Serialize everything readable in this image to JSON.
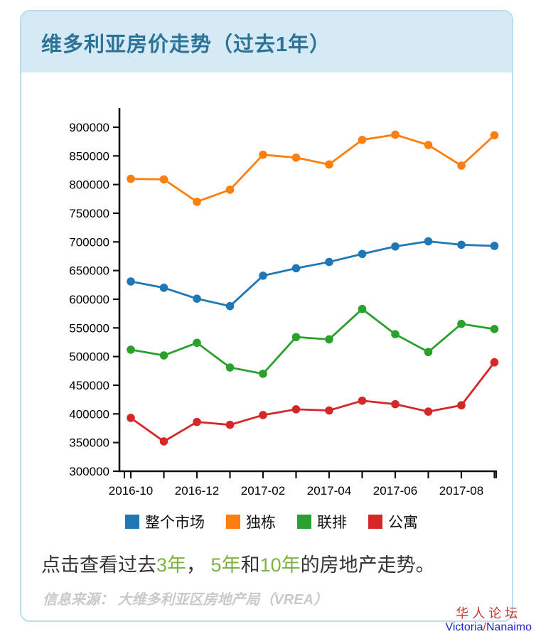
{
  "header": {
    "title": "维多利亚房价走势（过去1年）"
  },
  "chart_data": {
    "type": "line",
    "title": "维多利亚房价走势（过去1年）",
    "xlabel": "",
    "ylabel": "",
    "grid": false,
    "legend_position": "bottom",
    "ylim": [
      300000,
      940000
    ],
    "y_ticks": [
      300000,
      350000,
      400000,
      450000,
      500000,
      550000,
      600000,
      650000,
      700000,
      750000,
      800000,
      850000,
      900000
    ],
    "x": [
      "2016-10",
      "2016-11",
      "2016-12",
      "2017-01",
      "2017-02",
      "2017-03",
      "2017-04",
      "2017-05",
      "2017-06",
      "2017-07",
      "2017-08",
      "2017-09"
    ],
    "x_tick_labels_shown": [
      "2016-10",
      "2016-12",
      "2017-02",
      "2017-04",
      "2017-06",
      "2017-08"
    ],
    "axis_color": "#111111",
    "series": [
      {
        "name": "整个市场",
        "color": "#1f77b4",
        "values": [
          631000,
          620000,
          601000,
          588000,
          641000,
          654000,
          665000,
          679000,
          692000,
          701000,
          695000,
          693000
        ]
      },
      {
        "name": "独栋",
        "color": "#ff7f0e",
        "values": [
          810000,
          809000,
          770000,
          791000,
          852000,
          847000,
          835000,
          878000,
          887000,
          869000,
          833000,
          886000
        ]
      },
      {
        "name": "联排",
        "color": "#2ca02c",
        "values": [
          512000,
          502000,
          524000,
          481000,
          470000,
          534000,
          530000,
          583000,
          539000,
          508000,
          557000,
          548000
        ]
      },
      {
        "name": "公寓",
        "color": "#d62728",
        "values": [
          393000,
          352000,
          386000,
          381000,
          398000,
          408000,
          406000,
          423000,
          417000,
          404000,
          415000,
          490000
        ]
      }
    ]
  },
  "footer": {
    "link_color": "#7cb342",
    "click_line": {
      "parts": [
        {
          "text": "点击查看过去"
        },
        {
          "text": "3年"
        },
        {
          "text": "， "
        },
        {
          "text": "5年"
        },
        {
          "text": "和"
        },
        {
          "text": "10年"
        },
        {
          "text": "的房地产走势。"
        }
      ]
    },
    "source": "信息来源： 大维多利亚区房地产局（VREA）"
  },
  "watermark": {
    "line1": "华人论坛",
    "en_left": "Victoria",
    "slash": "/",
    "en_right": "Nanaimo",
    "color_red": "#cc3333",
    "color_blue": "#2424cc"
  }
}
